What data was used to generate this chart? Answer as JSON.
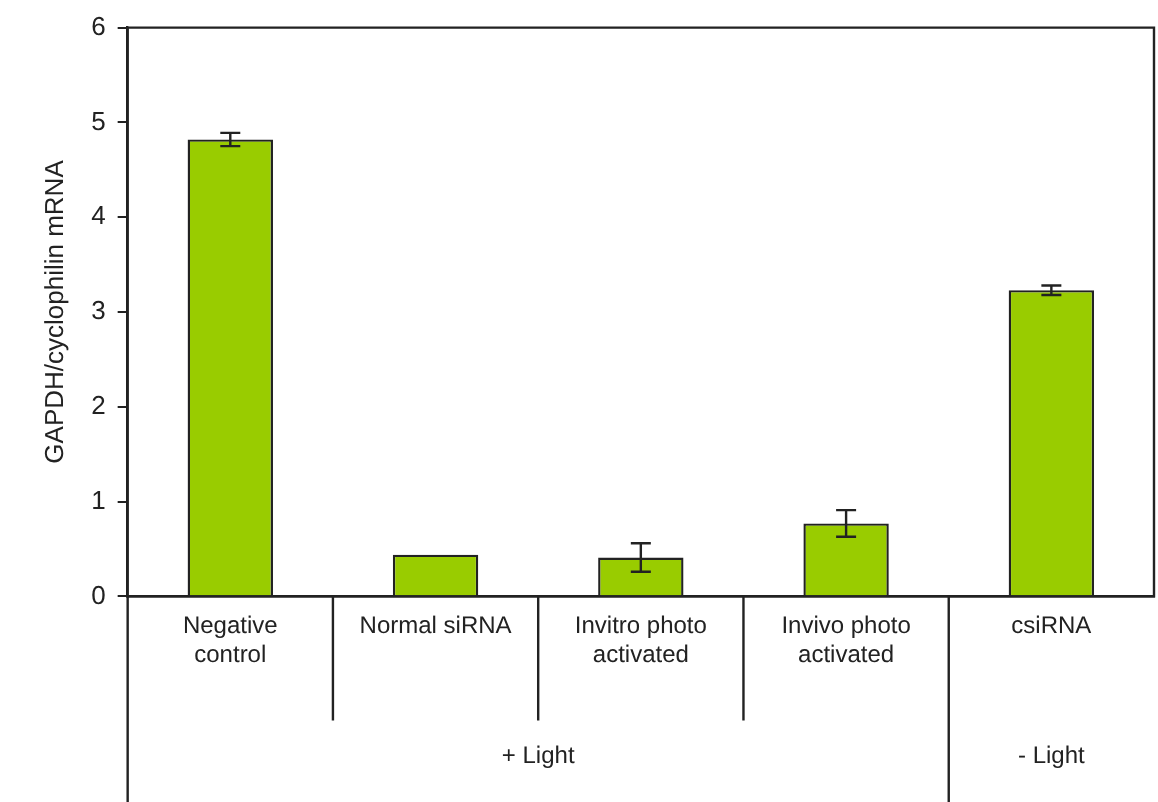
{
  "chart_data": {
    "type": "bar",
    "ylabel": "GAPDH/cyclophilin mRNA",
    "categories": [
      "Negative control",
      "Normal siRNA",
      "Invitro photo activated",
      "Invivo photo activated",
      "csiRNA"
    ],
    "values": [
      4.82,
      0.44,
      0.41,
      0.77,
      3.23
    ],
    "errors": [
      0.07,
      null,
      0.15,
      0.14,
      0.05
    ],
    "color": "#99cc00",
    "ylim": [
      0,
      6
    ],
    "yticks": [
      0,
      1,
      2,
      3,
      4,
      5,
      6
    ],
    "grid": false,
    "legend": false,
    "annotations": [
      "+ Light",
      "- Light"
    ]
  }
}
